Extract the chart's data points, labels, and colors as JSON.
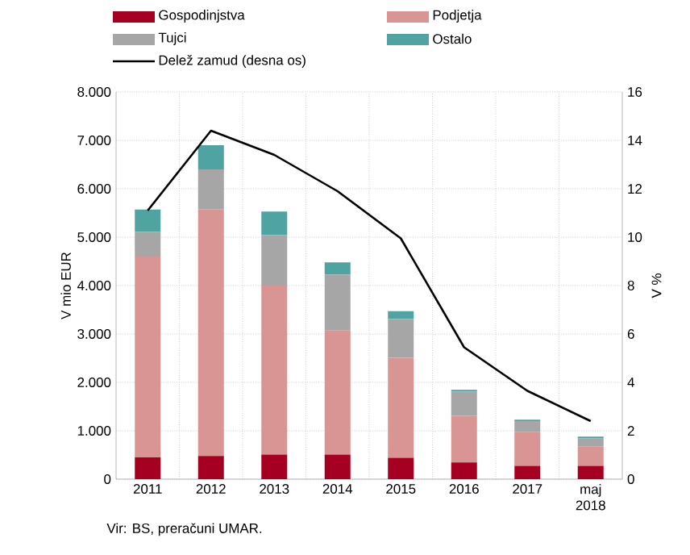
{
  "chart_data": {
    "type": "bar",
    "stacked": true,
    "categories": [
      "2011",
      "2012",
      "2013",
      "2014",
      "2015",
      "2016",
      "2017",
      "maj 2018"
    ],
    "series": [
      {
        "name": "Gospodinjstva",
        "color": "#a50021",
        "values": [
          450,
          480,
          510,
          510,
          440,
          345,
          275,
          275
        ]
      },
      {
        "name": "Podjetja",
        "color": "#d99594",
        "values": [
          4150,
          5100,
          3490,
          2560,
          2070,
          965,
          705,
          405
        ]
      },
      {
        "name": "Tujci",
        "color": "#a6a6a6",
        "values": [
          510,
          820,
          1040,
          1160,
          800,
          500,
          220,
          165
        ]
      },
      {
        "name": "Ostalo",
        "color": "#4fa3a0",
        "values": [
          460,
          500,
          490,
          250,
          160,
          35,
          30,
          35
        ]
      },
      {
        "name": "Delež zamud (desna os)",
        "type": "line",
        "axis": "y2",
        "color": "#000000",
        "marker": "none",
        "values": [
          11.1,
          14.4,
          13.4,
          11.9,
          9.95,
          5.45,
          3.65,
          2.4
        ]
      }
    ],
    "ylabel": "V mio EUR",
    "y2label": "V %",
    "ylim": [
      0,
      8000
    ],
    "yticks": [
      {
        "value": 0,
        "label": "0"
      },
      {
        "value": 1000,
        "label": "1.000"
      },
      {
        "value": 2000,
        "label": "2.000"
      },
      {
        "value": 3000,
        "label": "3.000"
      },
      {
        "value": 4000,
        "label": "4.000"
      },
      {
        "value": 5000,
        "label": "5.000"
      },
      {
        "value": 6000,
        "label": "6.000"
      },
      {
        "value": 7000,
        "label": "7.000"
      },
      {
        "value": 8000,
        "label": "8.000"
      }
    ],
    "y2lim": [
      0,
      16
    ],
    "y2ticks": [
      0,
      2,
      4,
      6,
      8,
      10,
      12,
      14,
      16
    ],
    "grid": true,
    "legend": "top",
    "annotations": [
      "Vir: BS, preračuni UMAR."
    ]
  }
}
